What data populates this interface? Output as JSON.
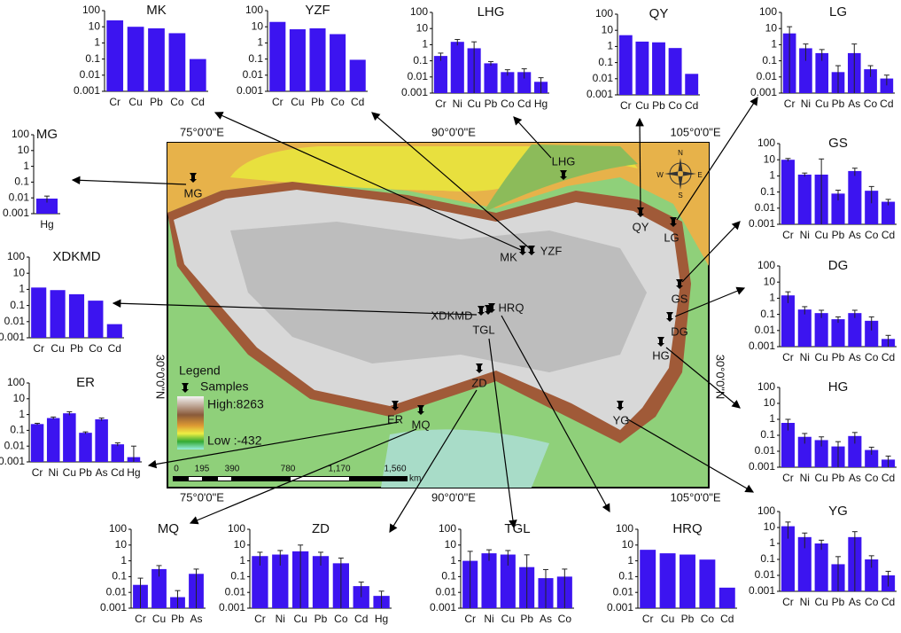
{
  "chart_data": [
    {
      "type": "bar",
      "title": "MK",
      "categories": [
        "Cr",
        "Cu",
        "Pb",
        "Co",
        "Cd"
      ],
      "values": [
        25,
        10,
        8,
        4,
        0.1
      ],
      "ylim": [
        0.001,
        100
      ],
      "yticks": [
        100,
        10,
        1,
        0.1,
        0.01,
        0.001
      ],
      "log_scale": true,
      "color": "#3c14f0"
    },
    {
      "type": "bar",
      "title": "YZF",
      "categories": [
        "Cr",
        "Cu",
        "Pb",
        "Co",
        "Cd"
      ],
      "values": [
        20,
        7,
        8,
        3.5,
        0.09
      ],
      "ylim": [
        0.001,
        100
      ],
      "yticks": [
        100,
        10,
        1,
        0.1,
        0.01,
        0.001
      ],
      "log_scale": true,
      "color": "#3c14f0"
    },
    {
      "type": "bar",
      "title": "LHG",
      "categories": [
        "Cr",
        "Ni",
        "Cu",
        "Pb",
        "Co",
        "Cd",
        "Hg"
      ],
      "values": [
        0.2,
        1.5,
        0.6,
        0.07,
        0.02,
        0.02,
        0.005
      ],
      "errors": [
        0.1,
        0.6,
        0.9,
        0.02,
        0.008,
        0.012,
        0.004
      ],
      "ylim": [
        0.001,
        100
      ],
      "yticks": [
        100,
        10,
        1,
        0.1,
        0.01,
        0.001
      ],
      "log_scale": true,
      "color": "#3c14f0"
    },
    {
      "type": "bar",
      "title": "QY",
      "categories": [
        "Cr",
        "Cu",
        "Pb",
        "Co",
        "Cd"
      ],
      "values": [
        5,
        2,
        1.8,
        0.8,
        0.02
      ],
      "ylim": [
        0.001,
        100
      ],
      "yticks": [
        100,
        10,
        1,
        0.1,
        0.01,
        0.001
      ],
      "log_scale": true,
      "color": "#3c14f0"
    },
    {
      "type": "bar",
      "title": "LG",
      "categories": [
        "Cr",
        "Ni",
        "Cu",
        "Pb",
        "As",
        "Co",
        "Cd"
      ],
      "values": [
        5,
        0.6,
        0.3,
        0.02,
        0.3,
        0.03,
        0.008
      ],
      "errors": [
        8,
        0.5,
        0.2,
        0.03,
        0.8,
        0.02,
        0.005
      ],
      "ylim": [
        0.001,
        100
      ],
      "yticks": [
        100,
        10,
        1,
        0.1,
        0.01,
        0.001
      ],
      "log_scale": true,
      "color": "#3c14f0"
    },
    {
      "type": "bar",
      "title": "MG",
      "categories": [
        "Hg"
      ],
      "values": [
        0.009
      ],
      "errors": [
        0.004
      ],
      "ylim": [
        0.001,
        100
      ],
      "yticks": [
        100,
        10,
        1,
        0.1,
        0.01,
        0.001
      ],
      "log_scale": true,
      "color": "#3c14f0"
    },
    {
      "type": "bar",
      "title": "GS",
      "categories": [
        "Cr",
        "Ni",
        "Cu",
        "Pb",
        "As",
        "Co",
        "Cd"
      ],
      "values": [
        10,
        1.2,
        1.2,
        0.08,
        2,
        0.12,
        0.025
      ],
      "errors": [
        2,
        0.3,
        10,
        0.05,
        1,
        0.1,
        0.01
      ],
      "ylim": [
        0.001,
        100
      ],
      "yticks": [
        100,
        10,
        1,
        0.1,
        0.01,
        0.001
      ],
      "log_scale": true,
      "color": "#3c14f0"
    },
    {
      "type": "bar",
      "title": "XDKMD",
      "categories": [
        "Cr",
        "Cu",
        "Pb",
        "Co",
        "Cd"
      ],
      "values": [
        1.3,
        0.9,
        0.5,
        0.2,
        0.007
      ],
      "ylim": [
        0.001,
        100
      ],
      "yticks": [
        100,
        10,
        1,
        0.1,
        0.01,
        0.001
      ],
      "log_scale": true,
      "color": "#3c14f0"
    },
    {
      "type": "bar",
      "title": "DG",
      "categories": [
        "Cr",
        "Ni",
        "Cu",
        "Pb",
        "As",
        "Co",
        "Cd"
      ],
      "values": [
        1.5,
        0.2,
        0.12,
        0.05,
        0.12,
        0.04,
        0.003
      ],
      "errors": [
        1,
        0.1,
        0.06,
        0.02,
        0.06,
        0.03,
        0.002
      ],
      "ylim": [
        0.001,
        100
      ],
      "yticks": [
        100,
        10,
        1,
        0.1,
        0.01,
        0.001
      ],
      "log_scale": true,
      "color": "#3c14f0"
    },
    {
      "type": "bar",
      "title": "ER",
      "categories": [
        "Cr",
        "Ni",
        "Cu",
        "Pb",
        "As",
        "Cd",
        "Hg"
      ],
      "values": [
        0.25,
        0.6,
        1.2,
        0.07,
        0.5,
        0.013,
        0.002
      ],
      "errors": [
        0.03,
        0.1,
        0.3,
        0.01,
        0.1,
        0.003,
        0.008
      ],
      "ylim": [
        0.001,
        100
      ],
      "yticks": [
        100,
        10,
        1,
        0.1,
        0.01,
        0.001
      ],
      "log_scale": true,
      "color": "#3c14f0"
    },
    {
      "type": "bar",
      "title": "HG",
      "categories": [
        "Cr",
        "Ni",
        "Cu",
        "Pb",
        "As",
        "Co",
        "Cd"
      ],
      "values": [
        0.6,
        0.08,
        0.05,
        0.02,
        0.09,
        0.012,
        0.003
      ],
      "errors": [
        0.4,
        0.05,
        0.03,
        0.02,
        0.06,
        0.006,
        0.002
      ],
      "ylim": [
        0.001,
        100
      ],
      "yticks": [
        100,
        10,
        1,
        0.1,
        0.01,
        0.001
      ],
      "log_scale": true,
      "color": "#3c14f0"
    },
    {
      "type": "bar",
      "title": "YG",
      "categories": [
        "Cr",
        "Ni",
        "Cu",
        "Pb",
        "As",
        "Co",
        "Cd"
      ],
      "values": [
        12,
        2.5,
        1,
        0.05,
        2.5,
        0.1,
        0.01
      ],
      "errors": [
        10,
        2,
        0.6,
        0.1,
        3,
        0.07,
        0.008
      ],
      "ylim": [
        0.001,
        100
      ],
      "yticks": [
        100,
        10,
        1,
        0.1,
        0.01,
        0.001
      ],
      "log_scale": true,
      "color": "#3c14f0"
    },
    {
      "type": "bar",
      "title": "MQ",
      "categories": [
        "Cr",
        "Cu",
        "Pb",
        "As"
      ],
      "values": [
        0.03,
        0.3,
        0.005,
        0.15
      ],
      "errors": [
        0.05,
        0.2,
        0.008,
        0.15
      ],
      "ylim": [
        0.001,
        100
      ],
      "yticks": [
        100,
        10,
        1,
        0.1,
        0.01,
        0.001
      ],
      "log_scale": true,
      "color": "#3c14f0"
    },
    {
      "type": "bar",
      "title": "ZD",
      "categories": [
        "Cr",
        "Ni",
        "Cu",
        "Pb",
        "Co",
        "Cd",
        "Hg"
      ],
      "values": [
        2,
        2.5,
        4,
        2,
        0.7,
        0.025,
        0.006
      ],
      "errors": [
        1.5,
        2,
        6,
        1.5,
        0.8,
        0.02,
        0.006
      ],
      "ylim": [
        0.001,
        100
      ],
      "yticks": [
        100,
        10,
        1,
        0.1,
        0.01,
        0.001
      ],
      "log_scale": true,
      "color": "#3c14f0"
    },
    {
      "type": "bar",
      "title": "TGL",
      "categories": [
        "Cr",
        "Ni",
        "Cu",
        "Pb",
        "As",
        "Co"
      ],
      "values": [
        1,
        3,
        2.5,
        0.4,
        0.08,
        0.1
      ],
      "errors": [
        3,
        2,
        2,
        2,
        0.2,
        0.2
      ],
      "ylim": [
        0.001,
        100
      ],
      "yticks": [
        100,
        10,
        1,
        0.1,
        0.01,
        0.001
      ],
      "log_scale": true,
      "color": "#3c14f0"
    },
    {
      "type": "bar",
      "title": "HRQ",
      "categories": [
        "Cr",
        "Cu",
        "Pb",
        "Co",
        "Cd"
      ],
      "values": [
        5,
        3,
        2.5,
        1.2,
        0.02
      ],
      "ylim": [
        0.001,
        100
      ],
      "yticks": [
        100,
        10,
        1,
        0.1,
        0.01,
        0.001
      ],
      "log_scale": true,
      "color": "#3c14f0"
    }
  ],
  "map": {
    "longitudes": [
      "75°0'0\"E",
      "90°0'0\"E",
      "105°0'0\"E"
    ],
    "latitude": "30°0'0\"N",
    "sites": [
      "MG",
      "MK",
      "YZF",
      "LHG",
      "QY",
      "LG",
      "GS",
      "XDKMD",
      "DG",
      "HG",
      "YG",
      "ER",
      "MQ",
      "ZD",
      "TGL",
      "HRQ"
    ],
    "legend": {
      "title": "Legend",
      "samples": "Samples",
      "high": "High:8263",
      "low": "Low :-432"
    },
    "scale": {
      "ticks": [
        "0",
        "195",
        "390",
        "780",
        "1,170",
        "1,560"
      ],
      "unit": "km"
    },
    "compass": [
      "N",
      "E",
      "S",
      "W"
    ]
  }
}
